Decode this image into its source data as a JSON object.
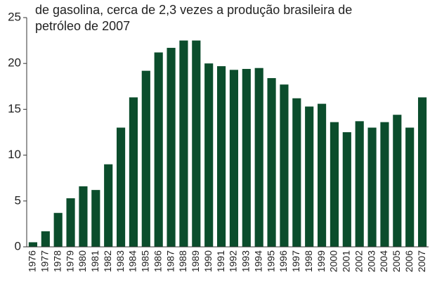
{
  "chart_data": {
    "type": "bar",
    "title": [
      "de gasolina, cerca de 2,3 vezes a produção brasileira de",
      "petróleo de 2007"
    ],
    "categories": [
      "1976",
      "1977",
      "1978",
      "1979",
      "1980",
      "1981",
      "1982",
      "1983",
      "1984",
      "1985",
      "1986",
      "1987",
      "1988",
      "1989",
      "1990",
      "1991",
      "1992",
      "1993",
      "1994",
      "1995",
      "1996",
      "1997",
      "1998",
      "1999",
      "2000",
      "2001",
      "2002",
      "2003",
      "2004",
      "2005",
      "2006",
      "2007"
    ],
    "values": [
      0.5,
      1.7,
      3.7,
      5.3,
      6.6,
      6.2,
      9.0,
      13.0,
      16.3,
      19.2,
      21.2,
      21.7,
      22.5,
      22.5,
      20.0,
      19.7,
      19.3,
      19.4,
      19.5,
      18.4,
      17.7,
      16.2,
      15.3,
      15.6,
      13.6,
      12.5,
      13.7,
      13.0,
      13.6,
      14.4,
      13.0,
      16.3
    ],
    "color": "#0b4d2c",
    "ylim": [
      0,
      25
    ],
    "yticks": [
      0,
      5,
      10,
      15,
      20,
      25
    ],
    "grid": false
  }
}
